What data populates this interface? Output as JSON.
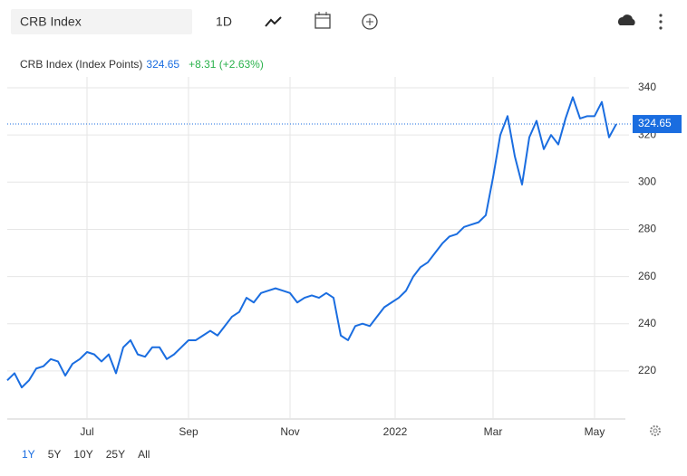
{
  "toolbar": {
    "search": "CRB Index",
    "interval": "1D"
  },
  "chart_data": {
    "type": "line",
    "title": "CRB Index (Index Points)",
    "change": "+8.31 (+2.63%)",
    "color": "#1a6de0",
    "grid": true,
    "values": [
      216,
      219,
      213,
      216,
      221,
      222,
      225,
      224,
      218,
      223,
      225,
      228,
      227,
      224,
      227,
      219,
      230,
      233,
      227,
      226,
      230,
      230,
      225,
      227,
      230,
      233,
      233,
      235,
      237,
      235,
      239,
      243,
      245,
      251,
      249,
      253,
      254,
      255,
      254,
      253,
      249,
      251,
      252,
      251,
      253,
      251,
      235,
      233,
      239,
      240,
      239,
      243,
      247,
      249,
      251,
      254,
      260,
      264,
      266,
      270,
      274,
      277,
      278,
      281,
      282,
      283,
      286,
      302,
      320,
      328,
      311,
      299,
      319,
      326,
      314,
      320,
      316,
      327,
      336,
      327,
      328,
      328,
      334,
      319,
      324.65
    ],
    "xlim": [
      0,
      84
    ],
    "xticks": [
      {
        "value": 11,
        "label": "Jul"
      },
      {
        "value": 25,
        "label": "Sep"
      },
      {
        "value": 39,
        "label": "Nov"
      },
      {
        "value": 53.5,
        "label": "2022"
      },
      {
        "value": 67,
        "label": "Mar"
      },
      {
        "value": 81,
        "label": "May"
      }
    ],
    "ylim": [
      200,
      345
    ],
    "yticks": [
      220,
      240,
      260,
      280,
      300,
      320,
      340
    ]
  },
  "range_buttons": [
    "1Y",
    "5Y",
    "10Y",
    "25Y",
    "All"
  ],
  "selected_range": "1Y"
}
